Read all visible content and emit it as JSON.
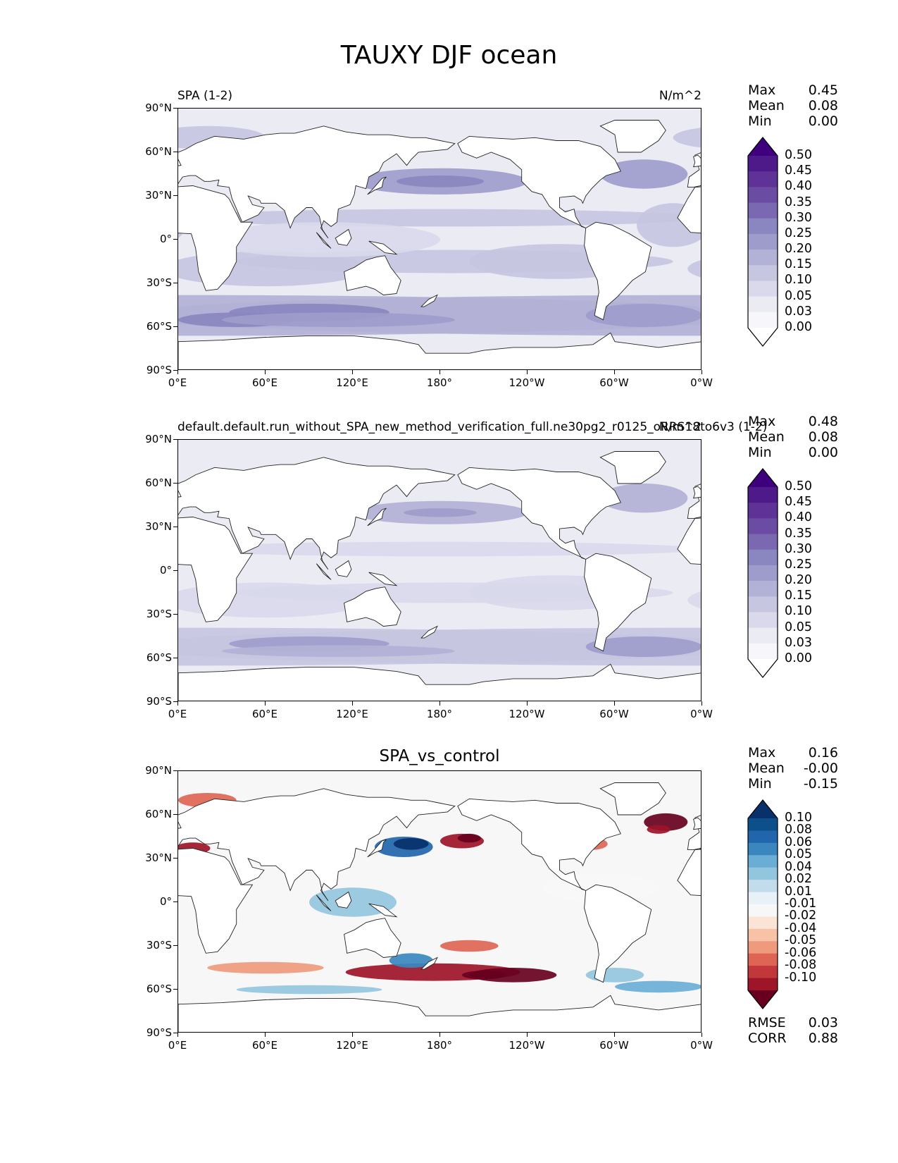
{
  "figure": {
    "title": "TAUXY DJF ocean"
  },
  "axes": {
    "lat_ticks": [
      "90°N",
      "60°N",
      "30°N",
      "0°",
      "30°S",
      "60°S",
      "90°S"
    ],
    "lon_ticks": [
      "0°E",
      "60°E",
      "120°E",
      "180°",
      "120°W",
      "60°W",
      "0°W"
    ]
  },
  "panels": [
    {
      "title_left": "SPA (1-2)",
      "title_center": "",
      "title_right": "N/m^2",
      "stats": [
        {
          "label": "Max",
          "value": "0.45"
        },
        {
          "label": "Mean",
          "value": "0.08"
        },
        {
          "label": "Min",
          "value": "0.00"
        }
      ],
      "colorbar": {
        "labels": [
          "0.50",
          "0.45",
          "0.40",
          "0.35",
          "0.30",
          "0.25",
          "0.20",
          "0.15",
          "0.10",
          "0.05",
          "0.03",
          "0.00"
        ],
        "colors": [
          "#3f007d",
          "#4e1a8a",
          "#5e3296",
          "#6b4ca3",
          "#7a69b1",
          "#8a86bf",
          "#9e9ccb",
          "#b2b1d6",
          "#c6c6e1",
          "#d9d9eb",
          "#ebebf4",
          "#f7f7fb",
          "#ffffff"
        ]
      }
    },
    {
      "title_left": "default.default.run_without_SPA_new_method_verification_full.ne30pg2_r0125_oRRS18to6v3 (1-2)",
      "title_center": "",
      "title_right": "N/m^2",
      "stats": [
        {
          "label": "Max",
          "value": "0.48"
        },
        {
          "label": "Mean",
          "value": "0.08"
        },
        {
          "label": "Min",
          "value": "0.00"
        }
      ],
      "colorbar": {
        "labels": [
          "0.50",
          "0.45",
          "0.40",
          "0.35",
          "0.30",
          "0.25",
          "0.20",
          "0.15",
          "0.10",
          "0.05",
          "0.03",
          "0.00"
        ],
        "colors": [
          "#3f007d",
          "#4e1a8a",
          "#5e3296",
          "#6b4ca3",
          "#7a69b1",
          "#8a86bf",
          "#9e9ccb",
          "#b2b1d6",
          "#c6c6e1",
          "#d9d9eb",
          "#ebebf4",
          "#f7f7fb",
          "#ffffff"
        ]
      }
    },
    {
      "title_left": "",
      "title_center": "SPA_vs_control",
      "title_right": "",
      "stats": [
        {
          "label": "Max",
          "value": "0.16"
        },
        {
          "label": "Mean",
          "value": "-0.00"
        },
        {
          "label": "Min",
          "value": "-0.15"
        }
      ],
      "metrics": [
        {
          "label": "RMSE",
          "value": "0.03"
        },
        {
          "label": "CORR",
          "value": "0.88"
        }
      ],
      "colorbar": {
        "labels": [
          "0.10",
          "0.08",
          "0.06",
          "0.05",
          "0.04",
          "0.02",
          "0.01",
          "-0.01",
          "-0.02",
          "-0.04",
          "-0.05",
          "-0.06",
          "-0.08",
          "-0.10"
        ],
        "colors": [
          "#08306b",
          "#0d4f8b",
          "#2166ac",
          "#3a87c0",
          "#6aaed6",
          "#92c5de",
          "#c3dcec",
          "#e8f1f7",
          "#f7f7f7",
          "#fbe4d6",
          "#f7c2a5",
          "#ef9a7c",
          "#de6553",
          "#c1373a",
          "#9e1428",
          "#67001f"
        ]
      }
    }
  ]
}
